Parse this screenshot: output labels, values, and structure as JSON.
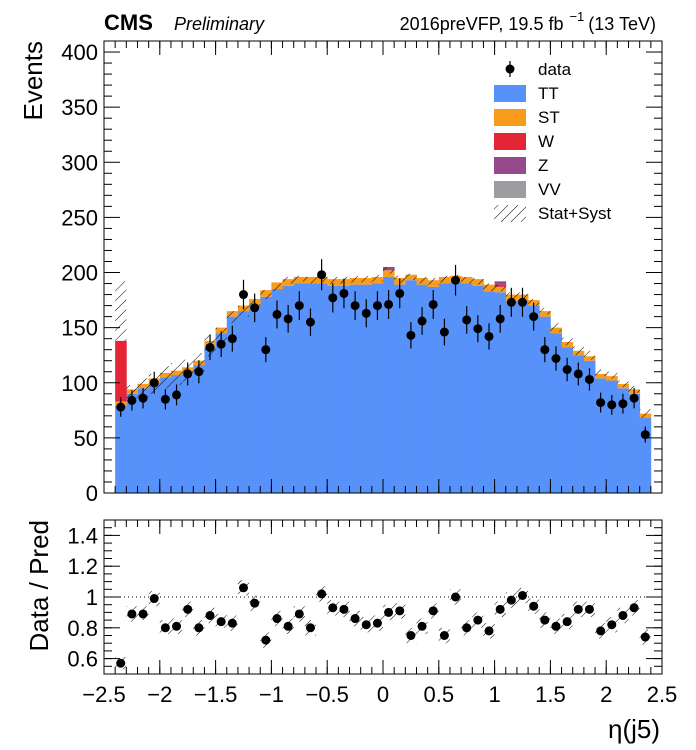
{
  "header": {
    "experiment": "CMS",
    "status": "Preliminary",
    "lumi_prefix": "2016preVFP, 19.5 fb",
    "lumi_exp": "−1",
    "lumi_suffix": "(13 TeV)"
  },
  "chart_data": [
    {
      "type": "bar",
      "stacked": true,
      "ylabel": "Events",
      "xlim": [
        -2.5,
        2.5
      ],
      "ylim": [
        0,
        410
      ],
      "x_ticks": [
        "−2.5",
        "−2",
        "−1.5",
        "−1",
        "−0.5",
        "0",
        "0.5",
        "1",
        "1.5",
        "2",
        "2.5"
      ],
      "x_tick_values": [
        -2.5,
        -2,
        -1.5,
        -1,
        -0.5,
        0,
        0.5,
        1,
        1.5,
        2,
        2.5
      ],
      "y_ticks": [
        "0",
        "50",
        "100",
        "150",
        "200",
        "250",
        "300",
        "350",
        "400"
      ],
      "y_tick_values": [
        0,
        50,
        100,
        150,
        200,
        250,
        300,
        350,
        400
      ],
      "legend_position": "top-right",
      "legend": [
        {
          "label": "data",
          "kind": "marker",
          "color": "#000000"
        },
        {
          "label": "TT",
          "kind": "fill",
          "color": "#5792fb"
        },
        {
          "label": "ST",
          "kind": "fill",
          "color": "#f89c1d"
        },
        {
          "label": "W",
          "kind": "fill",
          "color": "#e42536"
        },
        {
          "label": "Z",
          "kind": "fill",
          "color": "#964a8b"
        },
        {
          "label": "VV",
          "kind": "fill",
          "color": "#9c9ca1"
        },
        {
          "label": "Stat+Syst",
          "kind": "hatch",
          "color": "#000000"
        }
      ],
      "bin_edges": [
        -2.4,
        -2.3,
        -2.2,
        -2.1,
        -2.0,
        -1.9,
        -1.8,
        -1.7,
        -1.6,
        -1.5,
        -1.4,
        -1.3,
        -1.2,
        -1.1,
        -1.0,
        -0.9,
        -0.8,
        -0.7,
        -0.6,
        -0.5,
        -0.4,
        -0.3,
        -0.2,
        -0.1,
        0.0,
        0.1,
        0.2,
        0.3,
        0.4,
        0.5,
        0.6,
        0.7,
        0.8,
        0.9,
        1.0,
        1.1,
        1.2,
        1.3,
        1.4,
        1.5,
        1.6,
        1.7,
        1.8,
        1.9,
        2.0,
        2.1,
        2.2,
        2.3,
        2.4
      ],
      "series": [
        {
          "name": "TT",
          "color": "#5792fb",
          "values": [
            79,
            90,
            95,
            100,
            105,
            107,
            110,
            116,
            133,
            145,
            160,
            165,
            170,
            178,
            185,
            188,
            190,
            190,
            190,
            188,
            188,
            189,
            189,
            190,
            196,
            189,
            193,
            189,
            187,
            190,
            191,
            190,
            188,
            183,
            182,
            174,
            175,
            170,
            160,
            145,
            132,
            125,
            120,
            104,
            102,
            95,
            90,
            68
          ]
        },
        {
          "name": "ST",
          "color": "#f89c1d",
          "values": [
            4,
            4,
            4,
            4,
            4,
            4,
            4,
            4,
            5,
            5,
            5,
            5,
            6,
            6,
            6,
            6,
            6,
            6,
            6,
            6,
            6,
            6,
            6,
            6,
            6,
            6,
            5,
            6,
            6,
            6,
            6,
            6,
            6,
            6,
            5,
            6,
            5,
            5,
            5,
            5,
            5,
            4,
            4,
            4,
            4,
            4,
            4,
            4
          ]
        },
        {
          "name": "W",
          "color": "#e42536",
          "values": [
            55,
            0,
            0,
            0,
            0,
            0,
            0,
            0,
            0,
            0,
            0,
            0,
            0,
            0,
            0,
            0,
            0,
            0,
            0,
            0,
            0,
            0,
            0,
            0,
            0,
            0,
            0,
            0,
            0,
            0,
            0,
            0,
            0,
            0,
            2,
            0,
            0,
            0,
            0,
            0,
            0,
            0,
            0,
            0,
            0,
            0,
            0,
            0
          ]
        },
        {
          "name": "Z",
          "color": "#964a8b",
          "values": [
            0,
            0,
            0,
            0,
            0,
            0,
            0,
            0,
            0,
            0,
            0,
            0,
            0,
            0,
            0,
            0,
            0,
            0,
            0,
            0,
            0,
            0,
            0,
            0,
            3,
            0,
            0,
            0,
            0,
            0,
            0,
            0,
            0,
            0,
            3,
            0,
            0,
            0,
            0,
            0,
            0,
            0,
            0,
            0,
            0,
            0,
            0,
            0
          ]
        },
        {
          "name": "VV",
          "color": "#9c9ca1",
          "values": [
            0,
            0,
            0,
            0,
            0,
            0,
            0,
            0,
            0,
            0,
            0,
            0,
            0,
            0,
            0,
            0,
            0,
            0,
            0,
            0,
            0,
            0,
            0,
            0,
            0,
            0,
            0,
            0,
            0,
            0,
            0,
            0,
            0,
            0,
            0,
            0,
            0,
            0,
            0,
            0,
            0,
            0,
            0,
            0,
            0,
            0,
            0,
            0
          ]
        }
      ],
      "uncertainty": {
        "label": "Stat+Syst",
        "lower": [
          138,
          86,
          87,
          90,
          95,
          98,
          101,
          107,
          124,
          138,
          154,
          160,
          167,
          176,
          183,
          190,
          192,
          190,
          191,
          190,
          190,
          191,
          191,
          192,
          199,
          191,
          193,
          190,
          189,
          191,
          192,
          190,
          189,
          183,
          183,
          176,
          176,
          170,
          162,
          146,
          134,
          125,
          121,
          106,
          104,
          96,
          91,
          68
        ],
        "upper": [
          192,
          98,
          104,
          108,
          115,
          118,
          121,
          127,
          144,
          150,
          165,
          170,
          176,
          184,
          190,
          196,
          197,
          196,
          197,
          196,
          196,
          197,
          197,
          198,
          205,
          197,
          199,
          196,
          195,
          197,
          198,
          196,
          195,
          190,
          189,
          182,
          182,
          176,
          168,
          154,
          141,
          133,
          129,
          112,
          110,
          102,
          97,
          76
        ]
      },
      "data": {
        "name": "data",
        "x": [
          -2.35,
          -2.25,
          -2.15,
          -2.05,
          -1.95,
          -1.85,
          -1.75,
          -1.65,
          -1.55,
          -1.45,
          -1.35,
          -1.25,
          -1.15,
          -1.05,
          -0.95,
          -0.85,
          -0.75,
          -0.65,
          -0.55,
          -0.45,
          -0.35,
          -0.25,
          -0.15,
          -0.05,
          0.05,
          0.15,
          0.25,
          0.35,
          0.45,
          0.55,
          0.65,
          0.75,
          0.85,
          0.95,
          1.05,
          1.15,
          1.25,
          1.35,
          1.45,
          1.55,
          1.65,
          1.75,
          1.85,
          1.95,
          2.05,
          2.15,
          2.25,
          2.35
        ],
        "y": [
          78,
          84,
          86,
          100,
          85,
          89,
          108,
          110,
          132,
          135,
          140,
          180,
          168,
          130,
          162,
          158,
          170,
          155,
          198,
          177,
          181,
          170,
          163,
          170,
          171,
          181,
          143,
          156,
          171,
          146,
          193,
          157,
          149,
          142,
          158,
          173,
          173,
          160,
          130,
          122,
          112,
          108,
          103,
          82,
          80,
          81,
          86,
          53
        ]
      }
    },
    {
      "type": "scatter",
      "ylabel": "Data / Pred",
      "xlabel": "η(j5)",
      "xlim": [
        -2.5,
        2.5
      ],
      "ylim": [
        0.5,
        1.5
      ],
      "reference_line": 1,
      "x_ticks": [
        "−2.5",
        "−2",
        "−1.5",
        "−1",
        "−0.5",
        "0",
        "0.5",
        "1",
        "1.5",
        "2",
        "2.5"
      ],
      "x_tick_values": [
        -2.5,
        -2,
        -1.5,
        -1,
        -0.5,
        0,
        0.5,
        1,
        1.5,
        2,
        2.5
      ],
      "y_ticks": [
        "0.6",
        "0.8",
        "1",
        "1.2",
        "1.4"
      ],
      "y_tick_values": [
        0.6,
        0.8,
        1.0,
        1.2,
        1.4
      ],
      "x": [
        -2.35,
        -2.25,
        -2.15,
        -2.05,
        -1.95,
        -1.85,
        -1.75,
        -1.65,
        -1.55,
        -1.45,
        -1.35,
        -1.25,
        -1.15,
        -1.05,
        -0.95,
        -0.85,
        -0.75,
        -0.65,
        -0.55,
        -0.45,
        -0.35,
        -0.25,
        -0.15,
        -0.05,
        0.05,
        0.15,
        0.25,
        0.35,
        0.45,
        0.55,
        0.65,
        0.75,
        0.85,
        0.95,
        1.05,
        1.15,
        1.25,
        1.35,
        1.45,
        1.55,
        1.65,
        1.75,
        1.85,
        1.95,
        2.05,
        2.15,
        2.25,
        2.35
      ],
      "y": [
        0.57,
        0.89,
        0.89,
        0.99,
        0.8,
        0.81,
        0.92,
        0.8,
        0.88,
        0.84,
        0.83,
        1.06,
        0.96,
        0.72,
        0.86,
        0.81,
        0.89,
        0.8,
        1.02,
        0.93,
        0.92,
        0.86,
        0.82,
        0.83,
        0.9,
        0.91,
        0.75,
        0.81,
        0.91,
        0.75,
        1.0,
        0.8,
        0.85,
        0.78,
        0.92,
        0.98,
        1.01,
        0.94,
        0.85,
        0.81,
        0.84,
        0.92,
        0.92,
        0.78,
        0.82,
        0.88,
        0.93,
        0.74
      ],
      "uncertainty": {
        "lower": [
          0.53,
          0.84,
          0.85,
          0.94,
          0.76,
          0.76,
          0.87,
          0.75,
          0.83,
          0.8,
          0.78,
          1.01,
          0.91,
          0.67,
          0.81,
          0.76,
          0.84,
          0.75,
          0.97,
          0.88,
          0.87,
          0.81,
          0.77,
          0.78,
          0.85,
          0.86,
          0.7,
          0.76,
          0.86,
          0.7,
          0.95,
          0.75,
          0.8,
          0.73,
          0.87,
          0.93,
          0.96,
          0.89,
          0.8,
          0.76,
          0.79,
          0.87,
          0.87,
          0.73,
          0.77,
          0.83,
          0.88,
          0.69
        ],
        "upper": [
          0.61,
          0.94,
          0.94,
          1.04,
          0.85,
          0.86,
          0.97,
          0.85,
          0.93,
          0.89,
          0.88,
          1.11,
          1.01,
          0.77,
          0.91,
          0.86,
          0.94,
          0.85,
          1.07,
          0.98,
          0.97,
          0.91,
          0.87,
          0.88,
          0.95,
          0.96,
          0.8,
          0.86,
          0.96,
          0.8,
          1.05,
          0.85,
          0.9,
          0.83,
          0.97,
          1.03,
          1.06,
          0.99,
          0.9,
          0.86,
          0.89,
          0.97,
          0.97,
          0.83,
          0.87,
          0.93,
          0.98,
          0.79
        ]
      }
    }
  ]
}
